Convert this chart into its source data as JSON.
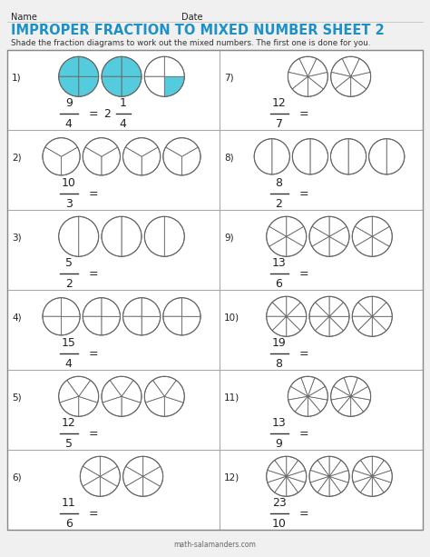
{
  "title": "IMPROPER FRACTION TO MIXED NUMBER SHEET 2",
  "title_color": "#1E90C8",
  "subtitle": "Shade the fraction diagrams to work out the mixed numbers. The first one is done for you.",
  "name_label": "Name",
  "date_label": "Date",
  "bg_color": "#F0F0F0",
  "cell_bg": "#FFFFFF",
  "problems": [
    {
      "num": "1)",
      "numerator": 9,
      "denominator": 4,
      "circles": 3,
      "shaded": 9,
      "answer": "2 1/4",
      "col": 0,
      "row": 0,
      "shade_color": "#55CCDD"
    },
    {
      "num": "2)",
      "numerator": 10,
      "denominator": 3,
      "circles": 4,
      "shaded": 0,
      "answer": "",
      "col": 0,
      "row": 1,
      "shade_color": null
    },
    {
      "num": "3)",
      "numerator": 5,
      "denominator": 2,
      "circles": 3,
      "shaded": 0,
      "answer": "",
      "col": 0,
      "row": 2,
      "shade_color": null
    },
    {
      "num": "4)",
      "numerator": 15,
      "denominator": 4,
      "circles": 4,
      "shaded": 0,
      "answer": "",
      "col": 0,
      "row": 3,
      "shade_color": null
    },
    {
      "num": "5)",
      "numerator": 12,
      "denominator": 5,
      "circles": 3,
      "shaded": 0,
      "answer": "",
      "col": 0,
      "row": 4,
      "shade_color": null
    },
    {
      "num": "6)",
      "numerator": 11,
      "denominator": 6,
      "circles": 2,
      "shaded": 0,
      "answer": "",
      "col": 0,
      "row": 5,
      "shade_color": null
    },
    {
      "num": "7)",
      "numerator": 12,
      "denominator": 7,
      "circles": 2,
      "shaded": 0,
      "answer": "",
      "col": 1,
      "row": 0,
      "shade_color": null
    },
    {
      "num": "8)",
      "numerator": 8,
      "denominator": 2,
      "circles": 4,
      "shaded": 0,
      "answer": "",
      "col": 1,
      "row": 1,
      "shade_color": null
    },
    {
      "num": "9)",
      "numerator": 13,
      "denominator": 6,
      "circles": 3,
      "shaded": 0,
      "answer": "",
      "col": 1,
      "row": 2,
      "shade_color": null
    },
    {
      "num": "10)",
      "numerator": 19,
      "denominator": 8,
      "circles": 3,
      "shaded": 0,
      "answer": "",
      "col": 1,
      "row": 3,
      "shade_color": null
    },
    {
      "num": "11)",
      "numerator": 13,
      "denominator": 9,
      "circles": 2,
      "shaded": 0,
      "answer": "",
      "col": 1,
      "row": 4,
      "shade_color": null
    },
    {
      "num": "12)",
      "numerator": 23,
      "denominator": 10,
      "circles": 3,
      "shaded": 0,
      "answer": "",
      "col": 1,
      "row": 5,
      "shade_color": null
    }
  ],
  "grid_color": "#AAAAAA",
  "circle_edge_color": "#666666",
  "text_color": "#333333",
  "header_line_color": "#333333",
  "footer_text": "math-salamanders.com"
}
